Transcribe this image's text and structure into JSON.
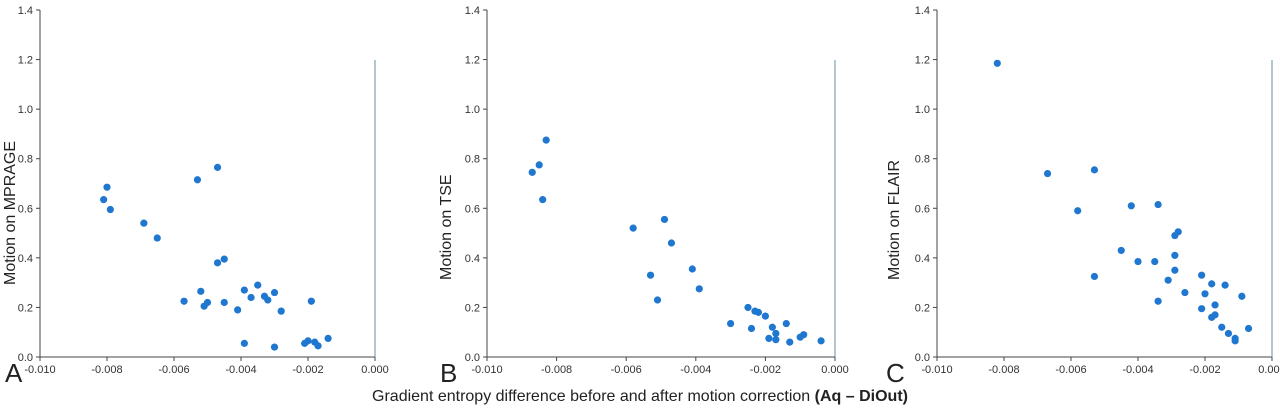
{
  "figure": {
    "xlabel_main": "Gradient entropy difference before and after motion correction",
    "xlabel_bold": "(Aq – DiOut)"
  },
  "chart_data": [
    {
      "type": "scatter",
      "panel_letter": "A",
      "ylabel": "Motion on MPRAGE",
      "xlim": [
        -0.01,
        0.0
      ],
      "ylim": [
        0,
        1.4
      ],
      "xticks": [
        "-0.010",
        "-0.008",
        "-0.006",
        "-0.004",
        "-0.002",
        "0.000"
      ],
      "yticks": [
        "0.0",
        "0.2",
        "0.4",
        "0.6",
        "0.8",
        "1.0",
        "1.2",
        "1.4"
      ],
      "marker_color": "#1f77d0",
      "points": [
        [
          -0.0081,
          0.635
        ],
        [
          -0.008,
          0.685
        ],
        [
          -0.0079,
          0.595
        ],
        [
          -0.0069,
          0.54
        ],
        [
          -0.0065,
          0.48
        ],
        [
          -0.0057,
          0.225
        ],
        [
          -0.0053,
          0.715
        ],
        [
          -0.0052,
          0.265
        ],
        [
          -0.0051,
          0.205
        ],
        [
          -0.005,
          0.22
        ],
        [
          -0.0047,
          0.765
        ],
        [
          -0.0047,
          0.38
        ],
        [
          -0.0045,
          0.395
        ],
        [
          -0.0045,
          0.22
        ],
        [
          -0.0041,
          0.19
        ],
        [
          -0.0039,
          0.27
        ],
        [
          -0.0039,
          0.055
        ],
        [
          -0.0037,
          0.24
        ],
        [
          -0.0035,
          0.29
        ],
        [
          -0.0033,
          0.245
        ],
        [
          -0.0032,
          0.23
        ],
        [
          -0.003,
          0.26
        ],
        [
          -0.003,
          0.04
        ],
        [
          -0.0028,
          0.185
        ],
        [
          -0.0021,
          0.055
        ],
        [
          -0.002,
          0.065
        ],
        [
          -0.0019,
          0.225
        ],
        [
          -0.0018,
          0.06
        ],
        [
          -0.0017,
          0.045
        ],
        [
          -0.0014,
          0.075
        ]
      ]
    },
    {
      "type": "scatter",
      "panel_letter": "B",
      "ylabel": "Motion on TSE",
      "xlim": [
        -0.01,
        0.0
      ],
      "ylim": [
        0,
        1.4
      ],
      "xticks": [
        "-0.010",
        "-0.008",
        "-0.006",
        "-0.004",
        "-0.002",
        "0.000"
      ],
      "yticks": [
        "0.0",
        "0.2",
        "0.4",
        "0.6",
        "0.8",
        "1.0",
        "1.2",
        "1.4"
      ],
      "marker_color": "#1f77d0",
      "points": [
        [
          -0.0087,
          0.745
        ],
        [
          -0.0085,
          0.775
        ],
        [
          -0.0084,
          0.635
        ],
        [
          -0.0083,
          0.875
        ],
        [
          -0.0058,
          0.52
        ],
        [
          -0.0053,
          0.33
        ],
        [
          -0.0051,
          0.23
        ],
        [
          -0.0049,
          0.555
        ],
        [
          -0.0047,
          0.46
        ],
        [
          -0.0041,
          0.355
        ],
        [
          -0.0039,
          0.275
        ],
        [
          -0.003,
          0.135
        ],
        [
          -0.0025,
          0.2
        ],
        [
          -0.0024,
          0.115
        ],
        [
          -0.0023,
          0.185
        ],
        [
          -0.0022,
          0.18
        ],
        [
          -0.002,
          0.165
        ],
        [
          -0.0019,
          0.075
        ],
        [
          -0.0018,
          0.12
        ],
        [
          -0.0017,
          0.07
        ],
        [
          -0.0017,
          0.095
        ],
        [
          -0.0014,
          0.135
        ],
        [
          -0.0013,
          0.06
        ],
        [
          -0.001,
          0.08
        ],
        [
          -0.0009,
          0.09
        ],
        [
          -0.0004,
          0.065
        ]
      ]
    },
    {
      "type": "scatter",
      "panel_letter": "C",
      "ylabel": "Motion on FLAIR",
      "xlim": [
        -0.01,
        0.0
      ],
      "ylim": [
        0,
        1.4
      ],
      "xticks": [
        "-0.010",
        "-0.008",
        "-0.006",
        "-0.004",
        "-0.002",
        "0.000"
      ],
      "yticks": [
        "0.0",
        "0.2",
        "0.4",
        "0.6",
        "0.8",
        "1.0",
        "1.2",
        "1.4"
      ],
      "marker_color": "#1f77d0",
      "points": [
        [
          -0.0082,
          1.185
        ],
        [
          -0.0067,
          0.74
        ],
        [
          -0.0058,
          0.59
        ],
        [
          -0.0053,
          0.755
        ],
        [
          -0.0053,
          0.325
        ],
        [
          -0.0045,
          0.43
        ],
        [
          -0.0042,
          0.61
        ],
        [
          -0.004,
          0.385
        ],
        [
          -0.0035,
          0.385
        ],
        [
          -0.0034,
          0.615
        ],
        [
          -0.0034,
          0.225
        ],
        [
          -0.0031,
          0.31
        ],
        [
          -0.0029,
          0.49
        ],
        [
          -0.0029,
          0.41
        ],
        [
          -0.0029,
          0.35
        ],
        [
          -0.0028,
          0.505
        ],
        [
          -0.0026,
          0.26
        ],
        [
          -0.0021,
          0.33
        ],
        [
          -0.0021,
          0.195
        ],
        [
          -0.002,
          0.255
        ],
        [
          -0.0018,
          0.16
        ],
        [
          -0.0018,
          0.295
        ],
        [
          -0.0017,
          0.21
        ],
        [
          -0.0017,
          0.17
        ],
        [
          -0.0015,
          0.12
        ],
        [
          -0.0014,
          0.29
        ],
        [
          -0.0013,
          0.095
        ],
        [
          -0.0011,
          0.075
        ],
        [
          -0.0011,
          0.065
        ],
        [
          -0.0009,
          0.245
        ],
        [
          -0.0007,
          0.115
        ]
      ]
    }
  ]
}
